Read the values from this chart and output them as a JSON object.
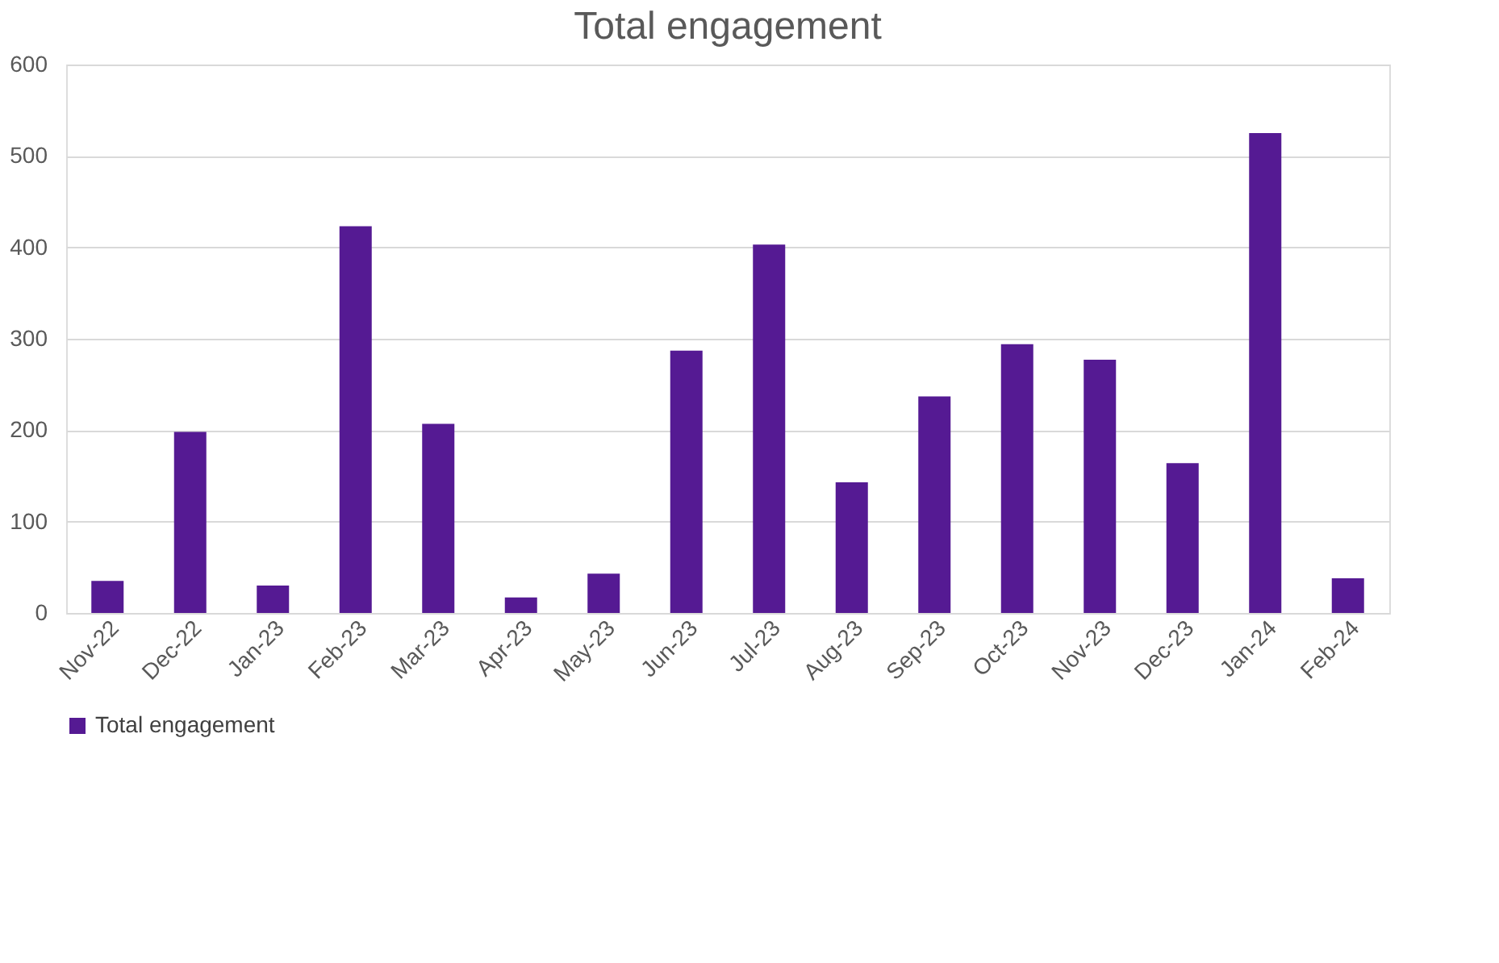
{
  "chart_data": {
    "type": "bar",
    "title": "Total engagement",
    "categories": [
      "Nov-22",
      "Dec-22",
      "Jan-23",
      "Feb-23",
      "Mar-23",
      "Apr-23",
      "May-23",
      "Jun-23",
      "Jul-23",
      "Aug-23",
      "Sep-23",
      "Oct-23",
      "Nov-23",
      "Dec-23",
      "Jan-24",
      "Feb-24"
    ],
    "series": [
      {
        "name": "Total engagement",
        "color": "#551a93",
        "values": [
          35,
          198,
          30,
          423,
          207,
          17,
          43,
          287,
          403,
          143,
          237,
          294,
          277,
          164,
          525,
          38
        ]
      }
    ],
    "ylim": [
      0,
      600
    ],
    "yticks": [
      0,
      100,
      200,
      300,
      400,
      500,
      600
    ],
    "grid": "y",
    "legend": "bottom"
  }
}
